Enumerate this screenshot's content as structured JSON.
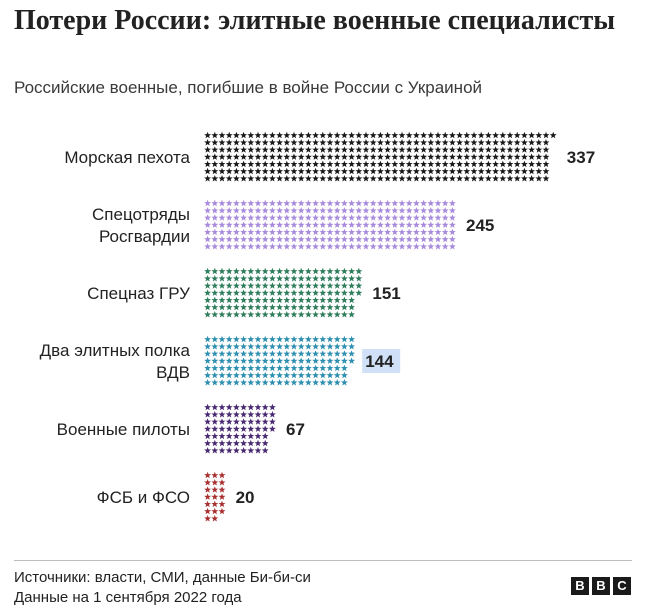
{
  "header": {
    "title": "Потери России: элитные военные специалисты",
    "subtitle": "Российские военные, погибшие в войне России с Украиной"
  },
  "chart_data": {
    "type": "bar",
    "orientation": "horizontal",
    "unit_symbol": "star",
    "categories": [
      [
        "Морская пехота"
      ],
      [
        "Спецотряды",
        "Росгвардии"
      ],
      [
        "Спецназ ГРУ"
      ],
      [
        "Два элитных полка",
        "ВДВ"
      ],
      [
        "Военные пилоты"
      ],
      [
        "ФСБ и ФСО"
      ]
    ],
    "values": [
      337,
      245,
      151,
      144,
      67,
      20
    ],
    "value_labels": [
      "337",
      "245",
      "151",
      "144",
      "67",
      "20"
    ],
    "colors": [
      "#1a1a1a",
      "#a98bdc",
      "#2e7d5b",
      "#2f8fb0",
      "#4a2a72",
      "#a83232"
    ],
    "highlighted_value_index": 3,
    "highlight_color": "#cfe0f7"
  },
  "footer": {
    "sources": "Источники: власти, СМИ, данные Би-би-си",
    "date": "Данные на 1 сентября 2022 года",
    "logo_letters": [
      "B",
      "B",
      "C"
    ]
  }
}
